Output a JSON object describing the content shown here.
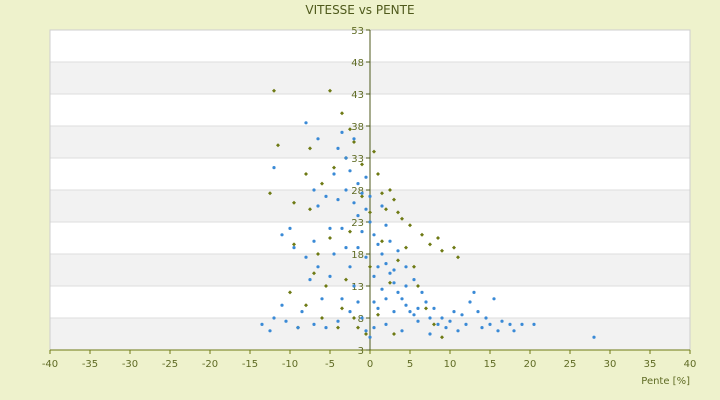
{
  "chart_data": {
    "type": "scatter",
    "title": "VITESSE vs PENTE",
    "xlabel": "Pente [%]",
    "ylabel": "",
    "xlim": [
      -40,
      40
    ],
    "ylim": [
      3,
      53
    ],
    "x_ticks": [
      "-40",
      "-35",
      "-30",
      "-25",
      "-20",
      "-15",
      "-10",
      "-5",
      "0",
      "5",
      "10",
      "15",
      "20",
      "25",
      "30",
      "35",
      "40"
    ],
    "y_ticks": [
      "3",
      "8",
      "13",
      "18",
      "23",
      "28",
      "33",
      "38",
      "43",
      "48",
      "53"
    ],
    "grid": "horizontal alternating bands",
    "legend": "none",
    "series": [
      {
        "color": "#6e7a14",
        "marker": "diamond",
        "points": [
          [
            -12,
            43.5
          ],
          [
            -5,
            43.5
          ],
          [
            -11.5,
            35
          ],
          [
            -7.5,
            34.5
          ],
          [
            -3.5,
            40
          ],
          [
            -2.5,
            37.5
          ],
          [
            -12.5,
            27.5
          ],
          [
            -9.5,
            26
          ],
          [
            -7.5,
            25
          ],
          [
            -8,
            30.5
          ],
          [
            -6,
            29
          ],
          [
            -4.5,
            31.5
          ],
          [
            -3,
            33
          ],
          [
            -2,
            35.5
          ],
          [
            -1,
            32
          ],
          [
            0.5,
            34
          ],
          [
            1,
            30.5
          ],
          [
            1.5,
            27.5
          ],
          [
            2.5,
            28
          ],
          [
            3,
            26.5
          ],
          [
            3.5,
            24.5
          ],
          [
            4,
            23.5
          ],
          [
            5,
            22.5
          ],
          [
            6.5,
            21
          ],
          [
            7.5,
            19.5
          ],
          [
            8.5,
            20.5
          ],
          [
            9,
            18.5
          ],
          [
            10.5,
            19
          ],
          [
            11,
            17.5
          ],
          [
            -10,
            12
          ],
          [
            -8,
            10
          ],
          [
            -6,
            8
          ],
          [
            -4,
            6.5
          ],
          [
            -9,
            6.5
          ],
          [
            -7,
            15
          ],
          [
            -5.5,
            13
          ],
          [
            -3.5,
            9.5
          ],
          [
            -1.5,
            6.5
          ],
          [
            -0.5,
            5.5
          ],
          [
            -2,
            8
          ],
          [
            -5,
            20.5
          ],
          [
            -2.5,
            21.5
          ],
          [
            0,
            24.5
          ],
          [
            -1,
            27
          ],
          [
            2,
            25
          ],
          [
            4.5,
            19
          ],
          [
            5.5,
            16
          ],
          [
            6,
            13
          ],
          [
            7,
            9.5
          ],
          [
            8,
            7
          ],
          [
            9,
            5
          ],
          [
            3,
            5.5
          ],
          [
            1,
            8.5
          ],
          [
            0,
            16
          ],
          [
            -3,
            14
          ],
          [
            -6.5,
            18
          ],
          [
            -9.5,
            19.5
          ],
          [
            1.5,
            20
          ],
          [
            3.5,
            17
          ],
          [
            2.5,
            13.5
          ]
        ]
      },
      {
        "color": "#3a8ad6",
        "marker": "dot",
        "points": [
          [
            -13.5,
            7
          ],
          [
            -12.5,
            6
          ],
          [
            -12,
            8
          ],
          [
            -11,
            10
          ],
          [
            -10.5,
            7.5
          ],
          [
            -9,
            6.5
          ],
          [
            -8.5,
            9
          ],
          [
            -7,
            7
          ],
          [
            -6,
            11
          ],
          [
            -5.5,
            6.5
          ],
          [
            -11,
            21
          ],
          [
            -10,
            22
          ],
          [
            -9.5,
            19
          ],
          [
            -8,
            17.5
          ],
          [
            -7.5,
            14
          ],
          [
            -6.5,
            16
          ],
          [
            -5,
            14.5
          ],
          [
            -4.5,
            18
          ],
          [
            -6.5,
            25.5
          ],
          [
            -7,
            28
          ],
          [
            -5.5,
            27
          ],
          [
            -4.5,
            30.5
          ],
          [
            -4,
            34.5
          ],
          [
            -3,
            33
          ],
          [
            -2.5,
            31
          ],
          [
            -2,
            36
          ],
          [
            -1.5,
            29
          ],
          [
            -1,
            27.5
          ],
          [
            -0.5,
            25
          ],
          [
            0,
            23
          ],
          [
            0.5,
            21
          ],
          [
            1,
            19.5
          ],
          [
            1.5,
            18
          ],
          [
            2,
            16.5
          ],
          [
            2.5,
            15
          ],
          [
            3,
            13.5
          ],
          [
            3.5,
            12
          ],
          [
            4,
            11
          ],
          [
            4.5,
            10
          ],
          [
            5,
            9
          ],
          [
            5.5,
            8.5
          ],
          [
            6,
            7.5
          ],
          [
            -3.5,
            22
          ],
          [
            -3,
            19
          ],
          [
            -2.5,
            16
          ],
          [
            -2,
            13
          ],
          [
            -1.5,
            10.5
          ],
          [
            -1,
            8
          ],
          [
            -0.5,
            6
          ],
          [
            0,
            5
          ],
          [
            0.5,
            6.5
          ],
          [
            1,
            9.5
          ],
          [
            1.5,
            12.5
          ],
          [
            2,
            11
          ],
          [
            -1,
            21.5
          ],
          [
            -1.5,
            24
          ],
          [
            -2,
            26
          ],
          [
            -0.5,
            17.5
          ],
          [
            0.5,
            14.5
          ],
          [
            1,
            16
          ],
          [
            2.5,
            20
          ],
          [
            3.5,
            18.5
          ],
          [
            4.5,
            16
          ],
          [
            5.5,
            14
          ],
          [
            6.5,
            12
          ],
          [
            7,
            10.5
          ],
          [
            7.5,
            8
          ],
          [
            8,
            9.5
          ],
          [
            8.5,
            7
          ],
          [
            9,
            8
          ],
          [
            9.5,
            6.5
          ],
          [
            10,
            7.5
          ],
          [
            10.5,
            9
          ],
          [
            11,
            6
          ],
          [
            11.5,
            8.5
          ],
          [
            12,
            7
          ],
          [
            12.5,
            10.5
          ],
          [
            13,
            12
          ],
          [
            13.5,
            9
          ],
          [
            14,
            6.5
          ],
          [
            14.5,
            8
          ],
          [
            15,
            7
          ],
          [
            15.5,
            11
          ],
          [
            16,
            6
          ],
          [
            16.5,
            7.5
          ],
          [
            17.5,
            7
          ],
          [
            18,
            6
          ],
          [
            19,
            7
          ],
          [
            20.5,
            7
          ],
          [
            28,
            5
          ],
          [
            -12,
            31.5
          ],
          [
            -8,
            38.5
          ],
          [
            -6.5,
            36
          ],
          [
            -3.5,
            37
          ],
          [
            -5,
            22
          ],
          [
            -7,
            20
          ],
          [
            -4,
            26.5
          ],
          [
            -3,
            28
          ],
          [
            -1.5,
            19
          ],
          [
            -2.5,
            9
          ],
          [
            -4,
            7.5
          ],
          [
            -3.5,
            11
          ],
          [
            2,
            7
          ],
          [
            3,
            9
          ],
          [
            4,
            6
          ],
          [
            4.5,
            13
          ],
          [
            3,
            15.5
          ],
          [
            2,
            22.5
          ],
          [
            1.5,
            25.5
          ],
          [
            0,
            27
          ],
          [
            -0.5,
            30
          ],
          [
            0.5,
            10.5
          ],
          [
            6,
            9.5
          ],
          [
            7.5,
            5.5
          ]
        ]
      }
    ]
  }
}
